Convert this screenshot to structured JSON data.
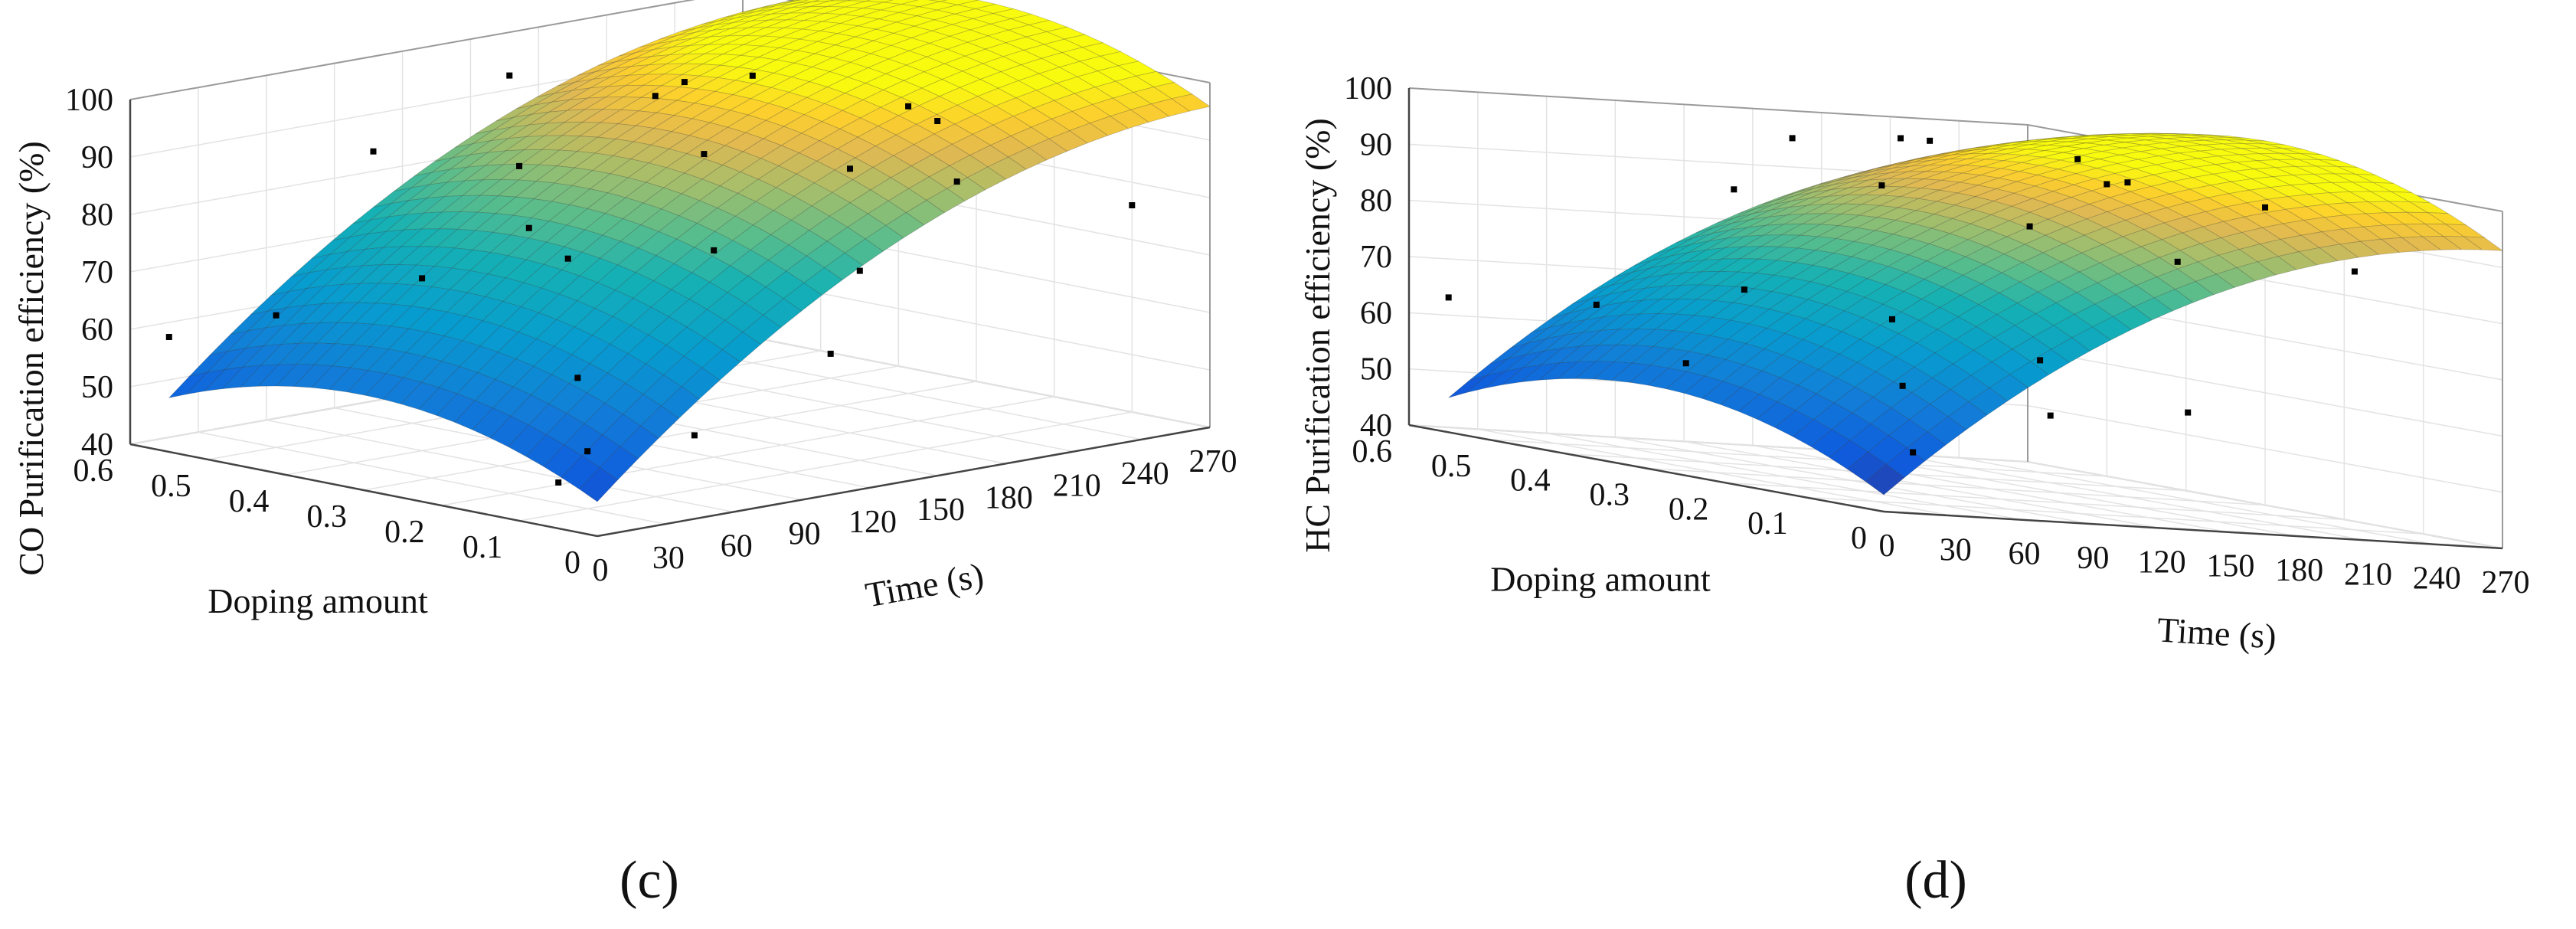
{
  "figure": {
    "panel_labels": [
      "(c)",
      "(d)"
    ]
  },
  "chart_data": [
    {
      "type": "surface3d",
      "panel": "(c)",
      "title": "",
      "xlabel": "Time (s)",
      "ylabel": "Doping amount",
      "zlabel": "CO Purification efficiency (%)",
      "x_ticks": [
        "0",
        "30",
        "60",
        "90",
        "120",
        "150",
        "180",
        "210",
        "240",
        "270"
      ],
      "y_ticks": [
        "0",
        "0.1",
        "0.2",
        "0.3",
        "0.4",
        "0.5",
        "0.6"
      ],
      "z_ticks": [
        "40",
        "50",
        "60",
        "70",
        "80",
        "90",
        "100"
      ],
      "xlim": [
        0,
        270
      ],
      "ylim": [
        0,
        0.6
      ],
      "zlim": [
        40,
        100
      ],
      "surface_model": {
        "z0": 46,
        "time_coef": 0.3556,
        "time_quad": -0.000633,
        "dope_coef": 70,
        "dope_quad": -116
      },
      "surface_extent": {
        "x": [
          0,
          270
        ],
        "y": [
          0,
          0.55
        ]
      },
      "points": [
        {
          "x": 0,
          "y": 0.55,
          "z": 60
        },
        {
          "x": 30,
          "y": 0.5,
          "z": 63
        },
        {
          "x": 60,
          "y": 0.4,
          "z": 70
        },
        {
          "x": 90,
          "y": 0.3,
          "z": 74
        },
        {
          "x": 120,
          "y": 0.2,
          "z": 76
        },
        {
          "x": 150,
          "y": 0.1,
          "z": 73
        },
        {
          "x": 0,
          "y": 0.05,
          "z": 48
        },
        {
          "x": 30,
          "y": 0.1,
          "z": 50
        },
        {
          "x": 60,
          "y": 0.2,
          "z": 58
        },
        {
          "x": 90,
          "y": 0.35,
          "z": 78
        },
        {
          "x": 120,
          "y": 0.45,
          "z": 84
        },
        {
          "x": 150,
          "y": 0.3,
          "z": 88
        },
        {
          "x": 180,
          "y": 0.2,
          "z": 86
        },
        {
          "x": 210,
          "y": 0.15,
          "z": 83
        },
        {
          "x": 240,
          "y": 0.3,
          "z": 90
        },
        {
          "x": 180,
          "y": 0.45,
          "z": 92
        },
        {
          "x": 210,
          "y": 0.5,
          "z": 91
        },
        {
          "x": 240,
          "y": 0.5,
          "z": 90
        },
        {
          "x": 270,
          "y": 0.35,
          "z": 84
        },
        {
          "x": 150,
          "y": 0.55,
          "z": 95
        },
        {
          "x": 90,
          "y": 0.55,
          "z": 86
        },
        {
          "x": 60,
          "y": 0.05,
          "z": 52
        },
        {
          "x": 120,
          "y": 0.05,
          "z": 62
        },
        {
          "x": 270,
          "y": 0.1,
          "z": 76
        }
      ]
    },
    {
      "type": "surface3d",
      "panel": "(d)",
      "title": "",
      "xlabel": "Time (s)",
      "ylabel": "Doping amount",
      "zlabel": "HC Purification efficiency (%)",
      "x_ticks": [
        "0",
        "30",
        "60",
        "90",
        "120",
        "150",
        "180",
        "210",
        "240",
        "270"
      ],
      "y_ticks": [
        "0",
        "0.1",
        "0.2",
        "0.3",
        "0.4",
        "0.5",
        "0.6"
      ],
      "z_ticks": [
        "40",
        "50",
        "60",
        "70",
        "80",
        "90",
        "100"
      ],
      "xlim": [
        0,
        270
      ],
      "ylim": [
        0,
        0.6
      ],
      "zlim": [
        40,
        100
      ],
      "surface_model": {
        "z0": 43,
        "time_coef": 0.3704,
        "time_quad": -0.000686,
        "dope_coef": 80,
        "dope_quad": -135
      },
      "surface_extent": {
        "x": [
          0,
          270
        ],
        "y": [
          0,
          0.55
        ]
      },
      "points": [
        {
          "x": 0,
          "y": 0.55,
          "z": 64
        },
        {
          "x": 30,
          "y": 0.45,
          "z": 66
        },
        {
          "x": 60,
          "y": 0.35,
          "z": 72
        },
        {
          "x": 90,
          "y": 0.25,
          "z": 70
        },
        {
          "x": 120,
          "y": 0.15,
          "z": 66
        },
        {
          "x": 150,
          "y": 0.05,
          "z": 60
        },
        {
          "x": 30,
          "y": 0.05,
          "z": 50
        },
        {
          "x": 60,
          "y": 0.15,
          "z": 60
        },
        {
          "x": 90,
          "y": 0.45,
          "z": 88
        },
        {
          "x": 120,
          "y": 0.35,
          "z": 92
        },
        {
          "x": 150,
          "y": 0.25,
          "z": 88
        },
        {
          "x": 180,
          "y": 0.15,
          "z": 85
        },
        {
          "x": 210,
          "y": 0.3,
          "z": 96
        },
        {
          "x": 240,
          "y": 0.45,
          "z": 97
        },
        {
          "x": 180,
          "y": 0.5,
          "z": 98
        },
        {
          "x": 150,
          "y": 0.55,
          "z": 96
        },
        {
          "x": 270,
          "y": 0.3,
          "z": 93
        },
        {
          "x": 240,
          "y": 0.1,
          "z": 86
        },
        {
          "x": 210,
          "y": 0.55,
          "z": 97
        },
        {
          "x": 90,
          "y": 0.05,
          "z": 58
        },
        {
          "x": 0,
          "y": 0.25,
          "z": 60
        },
        {
          "x": 270,
          "y": 0.5,
          "z": 92
        }
      ]
    }
  ]
}
